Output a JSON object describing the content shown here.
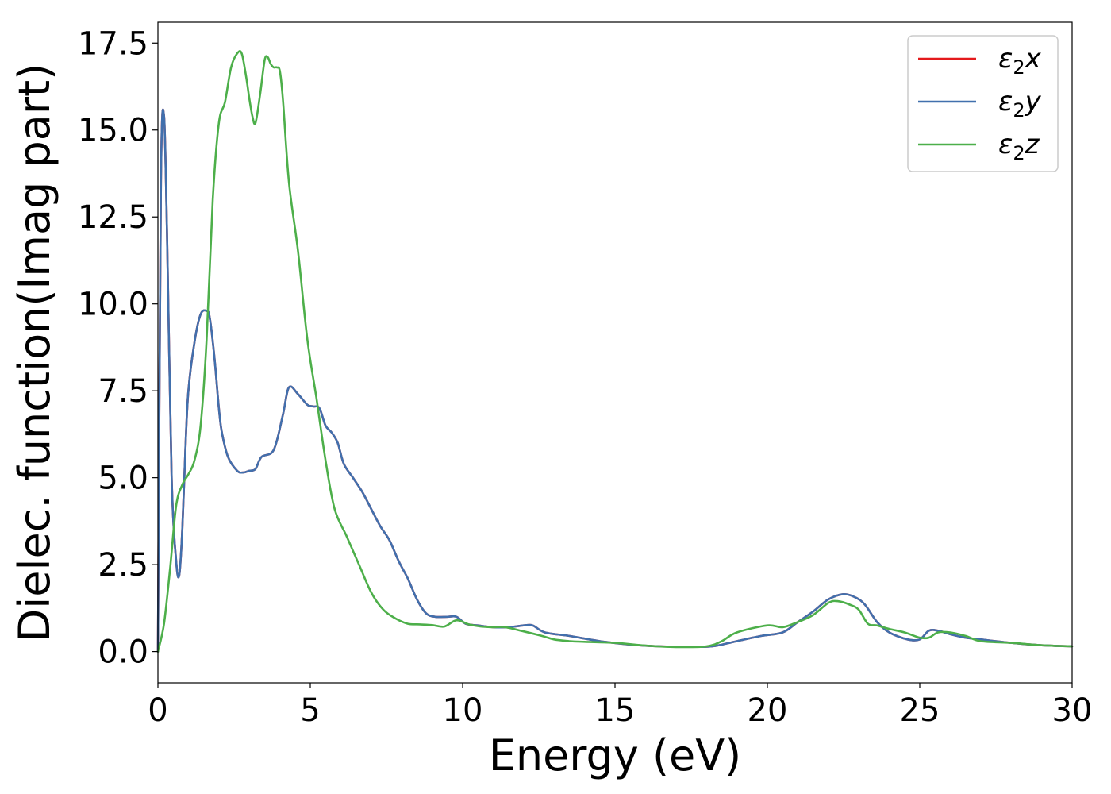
{
  "chart_data": {
    "type": "line",
    "title": "",
    "xlabel": "Energy (eV)",
    "ylabel": "Dielec. function(Imag part)",
    "xlim": [
      0,
      30
    ],
    "ylim": [
      -0.9,
      18.1
    ],
    "xticks": [
      0,
      5,
      10,
      15,
      20,
      25,
      30
    ],
    "xtick_labels": [
      "0",
      "5",
      "10",
      "15",
      "20",
      "25",
      "30"
    ],
    "yticks": [
      0.0,
      2.5,
      5.0,
      7.5,
      10.0,
      12.5,
      15.0,
      17.5
    ],
    "ytick_labels": [
      "0.0",
      "2.5",
      "5.0",
      "7.5",
      "10.0",
      "12.5",
      "15.0",
      "17.5"
    ],
    "grid": false,
    "legend_position": "top-right",
    "series": [
      {
        "name": "ε₂x",
        "legend_main": "ε",
        "legend_sub": "2",
        "legend_axis": "x",
        "color": "#e41a1c",
        "x": [
          0,
          0.1,
          0.2,
          0.3,
          0.45,
          0.6,
          0.7,
          0.8,
          0.9,
          1.0,
          1.2,
          1.4,
          1.6,
          1.7,
          1.85,
          2.0,
          2.1,
          2.3,
          2.6,
          2.8,
          3.0,
          3.2,
          3.4,
          3.8,
          4.1,
          4.3,
          4.6,
          4.9,
          5.1,
          5.3,
          5.5,
          5.7,
          5.9,
          6.1,
          6.4,
          6.7,
          7.0,
          7.3,
          7.6,
          7.9,
          8.2,
          8.5,
          8.8,
          9.1,
          9.5,
          9.8,
          10.1,
          10.5,
          11.0,
          11.5,
          12.0,
          12.3,
          12.7,
          13.5,
          14.5,
          15.5,
          16.5,
          17.5,
          18.2,
          19.0,
          19.8,
          20.5,
          21.0,
          21.5,
          22.0,
          22.5,
          22.9,
          23.2,
          23.6,
          24.0,
          24.6,
          25.0,
          25.3,
          25.6,
          26.0,
          26.5,
          27.0,
          28.0,
          29.0,
          30.0
        ],
        "y": [
          0.0,
          13.5,
          15.4,
          12.0,
          5.0,
          2.6,
          2.2,
          3.5,
          5.8,
          7.5,
          8.9,
          9.7,
          9.8,
          9.6,
          8.5,
          7.0,
          6.3,
          5.6,
          5.2,
          5.15,
          5.2,
          5.25,
          5.6,
          5.8,
          6.8,
          7.6,
          7.4,
          7.1,
          7.05,
          7.0,
          6.5,
          6.3,
          6.0,
          5.4,
          5.0,
          4.6,
          4.1,
          3.6,
          3.2,
          2.6,
          2.1,
          1.5,
          1.1,
          1.0,
          1.0,
          1.0,
          0.8,
          0.75,
          0.7,
          0.7,
          0.75,
          0.75,
          0.55,
          0.45,
          0.3,
          0.2,
          0.15,
          0.14,
          0.15,
          0.3,
          0.45,
          0.55,
          0.85,
          1.15,
          1.5,
          1.65,
          1.55,
          1.35,
          0.85,
          0.55,
          0.35,
          0.35,
          0.6,
          0.6,
          0.5,
          0.4,
          0.35,
          0.25,
          0.18,
          0.15
        ]
      },
      {
        "name": "ε₂y",
        "legend_main": "ε",
        "legend_sub": "2",
        "legend_axis": "y",
        "color": "#4170ad",
        "x": [
          0,
          0.1,
          0.2,
          0.3,
          0.45,
          0.6,
          0.7,
          0.8,
          0.9,
          1.0,
          1.2,
          1.4,
          1.6,
          1.7,
          1.85,
          2.0,
          2.1,
          2.3,
          2.6,
          2.8,
          3.0,
          3.2,
          3.4,
          3.8,
          4.1,
          4.3,
          4.6,
          4.9,
          5.1,
          5.3,
          5.5,
          5.7,
          5.9,
          6.1,
          6.4,
          6.7,
          7.0,
          7.3,
          7.6,
          7.9,
          8.2,
          8.5,
          8.8,
          9.1,
          9.5,
          9.8,
          10.1,
          10.5,
          11.0,
          11.5,
          12.0,
          12.3,
          12.7,
          13.5,
          14.5,
          15.5,
          16.5,
          17.5,
          18.2,
          19.0,
          19.8,
          20.5,
          21.0,
          21.5,
          22.0,
          22.5,
          22.9,
          23.2,
          23.6,
          24.0,
          24.6,
          25.0,
          25.3,
          25.6,
          26.0,
          26.5,
          27.0,
          28.0,
          29.0,
          30.0
        ],
        "y": [
          0.0,
          13.5,
          15.4,
          12.0,
          5.0,
          2.6,
          2.2,
          3.5,
          5.8,
          7.5,
          8.9,
          9.7,
          9.8,
          9.6,
          8.5,
          7.0,
          6.3,
          5.6,
          5.2,
          5.15,
          5.2,
          5.25,
          5.6,
          5.8,
          6.8,
          7.6,
          7.4,
          7.1,
          7.05,
          7.0,
          6.5,
          6.3,
          6.0,
          5.4,
          5.0,
          4.6,
          4.1,
          3.6,
          3.2,
          2.6,
          2.1,
          1.5,
          1.1,
          1.0,
          1.0,
          1.0,
          0.8,
          0.75,
          0.7,
          0.7,
          0.75,
          0.75,
          0.55,
          0.45,
          0.3,
          0.2,
          0.15,
          0.14,
          0.15,
          0.3,
          0.45,
          0.55,
          0.85,
          1.15,
          1.5,
          1.65,
          1.55,
          1.35,
          0.85,
          0.55,
          0.35,
          0.35,
          0.6,
          0.6,
          0.5,
          0.4,
          0.35,
          0.25,
          0.18,
          0.15
        ]
      },
      {
        "name": "ε₂z",
        "legend_main": "ε",
        "legend_sub": "2",
        "legend_axis": "z",
        "color": "#4daf4a",
        "x": [
          0,
          0.2,
          0.4,
          0.6,
          0.8,
          1.0,
          1.2,
          1.4,
          1.6,
          1.8,
          2.0,
          2.2,
          2.4,
          2.6,
          2.75,
          2.9,
          3.0,
          3.1,
          3.2,
          3.35,
          3.5,
          3.6,
          3.7,
          3.8,
          3.9,
          4.0,
          4.1,
          4.3,
          4.6,
          4.9,
          5.2,
          5.5,
          5.8,
          6.2,
          6.6,
          7.0,
          7.4,
          7.8,
          8.2,
          8.6,
          9.0,
          9.4,
          9.8,
          10.2,
          10.6,
          11.0,
          11.4,
          12.0,
          12.6,
          13.0,
          13.5,
          14.0,
          15.0,
          16.0,
          17.0,
          18.0,
          18.5,
          19.0,
          20.0,
          20.5,
          21.0,
          21.5,
          22.0,
          22.3,
          22.7,
          23.0,
          23.3,
          23.6,
          24.0,
          24.5,
          25.0,
          25.3,
          25.6,
          26.0,
          26.5,
          27.0,
          28.0,
          29.0,
          30.0
        ],
        "y": [
          0.0,
          0.8,
          2.4,
          4.2,
          4.8,
          5.1,
          5.5,
          6.5,
          9.0,
          13.0,
          15.2,
          15.8,
          16.8,
          17.2,
          17.2,
          16.5,
          15.9,
          15.4,
          15.2,
          16.0,
          17.0,
          17.1,
          16.9,
          16.8,
          16.8,
          16.7,
          15.9,
          13.5,
          11.5,
          9.0,
          7.3,
          5.5,
          4.1,
          3.3,
          2.5,
          1.7,
          1.2,
          0.95,
          0.8,
          0.78,
          0.76,
          0.72,
          0.9,
          0.78,
          0.72,
          0.7,
          0.7,
          0.58,
          0.45,
          0.35,
          0.3,
          0.28,
          0.25,
          0.17,
          0.13,
          0.15,
          0.3,
          0.55,
          0.75,
          0.7,
          0.85,
          1.05,
          1.4,
          1.45,
          1.35,
          1.2,
          0.8,
          0.75,
          0.65,
          0.55,
          0.4,
          0.4,
          0.55,
          0.55,
          0.45,
          0.3,
          0.25,
          0.18,
          0.15
        ]
      }
    ]
  }
}
